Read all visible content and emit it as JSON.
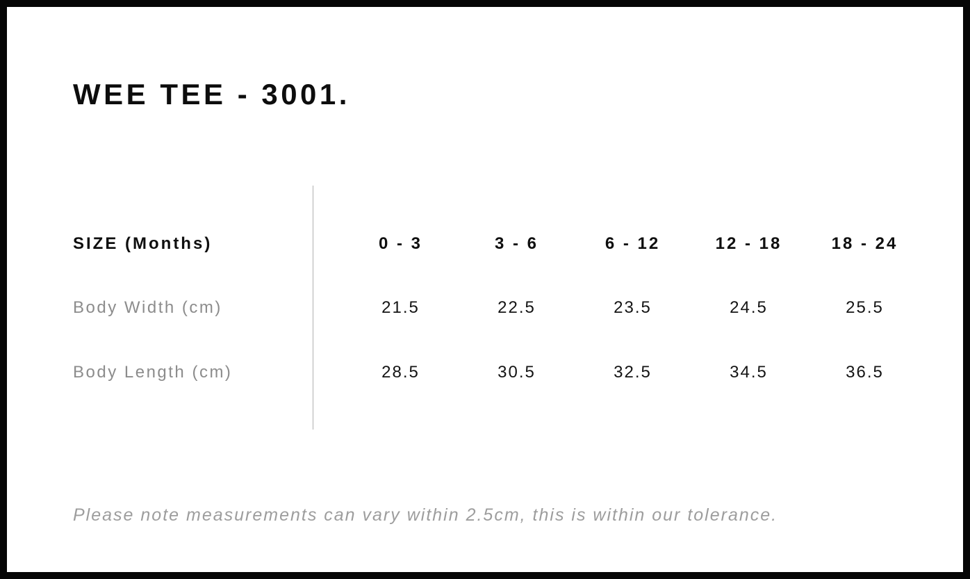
{
  "page": {
    "title": "WEE TEE - 3001."
  },
  "colors": {
    "border_black": "#060606",
    "text_black": "#0f0f0f",
    "label_gray": "#8c8c8c",
    "note_gray": "#9d9d9d",
    "divider_gray": "#b0b0b0",
    "background": "#ffffff"
  },
  "chart_data": {
    "type": "table",
    "title": "WEE TEE - 3001.",
    "header": {
      "label": "SIZE (Months)",
      "columns": [
        "0 - 3",
        "3 - 6",
        "6 - 12",
        "12 - 18",
        "18 - 24"
      ]
    },
    "rows": [
      {
        "label": "Body Width (cm)",
        "values": [
          "21.5",
          "22.5",
          "23.5",
          "24.5",
          "25.5"
        ]
      },
      {
        "label": "Body Length (cm)",
        "values": [
          "28.5",
          "30.5",
          "32.5",
          "34.5",
          "36.5"
        ]
      }
    ],
    "note": "Please note measurements can vary within 2.5cm, this is within our tolerance."
  }
}
